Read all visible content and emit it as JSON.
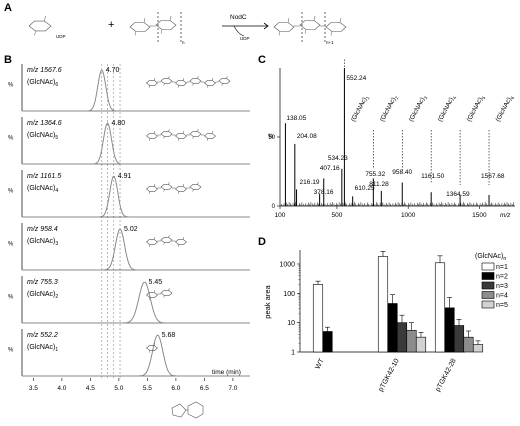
{
  "panels": {
    "A": {
      "letter": "A",
      "enzyme": "NodC",
      "left_label": "UDP",
      "product_label": "UDP",
      "subscript_n": "n",
      "subscript_n1": "n+1"
    },
    "B": {
      "letter": "B",
      "x_axis_label": "time (min)",
      "y_unit": "%"
    },
    "C": {
      "letter": "C",
      "y_unit": "%",
      "x_unit": "m/z"
    },
    "D": {
      "letter": "D",
      "y_axis_label": "peak area",
      "legend_title": "(GlcNAc)"
    }
  },
  "chart_data": [
    {
      "type": "line",
      "panel": "B",
      "x_ticks": [
        3.5,
        4.0,
        4.5,
        5.0,
        5.5,
        6.0,
        6.5,
        7.0
      ],
      "x_tick_labels": [
        "3.5",
        "4.0",
        "4.5",
        "5.0",
        "5.5",
        "6.0",
        "6.5",
        "7.0"
      ],
      "xlim": [
        3.3,
        7.3
      ],
      "xlabel": "time (min)",
      "ylabel": "%",
      "reference_lines": [
        4.7,
        4.8,
        4.91,
        5.02
      ],
      "series": [
        {
          "mz": "m/z 1567.6",
          "name": "(GlcNAc)",
          "sub": "6",
          "peak_time": 4.7,
          "peak_label": "4.70",
          "width": 0.07
        },
        {
          "mz": "m/z 1364.6",
          "name": "(GlcNAc)",
          "sub": "5",
          "peak_time": 4.8,
          "peak_label": "4.80",
          "width": 0.07
        },
        {
          "mz": "m/z 1161.5",
          "name": "(GlcNAc)",
          "sub": "4",
          "peak_time": 4.91,
          "peak_label": "4.91",
          "width": 0.07
        },
        {
          "mz": "m/z 958.4",
          "name": "(GlcNAc)",
          "sub": "3",
          "peak_time": 5.02,
          "peak_label": "5.02",
          "width": 0.08
        },
        {
          "mz": "m/z 755.3",
          "name": "(GlcNAc)",
          "sub": "2",
          "peak_time": 5.45,
          "peak_label": "5.45",
          "width": 0.1
        },
        {
          "mz": "m/z 552.2",
          "name": "(GlcNAc)",
          "sub": "1",
          "peak_time": 5.68,
          "peak_label": "5.68",
          "width": 0.09
        }
      ]
    },
    {
      "type": "bar",
      "panel": "C",
      "xlim": [
        100,
        1750
      ],
      "ylim": [
        0,
        100
      ],
      "x_ticks": [
        100,
        500,
        1000,
        1500
      ],
      "y_ticks": [
        0,
        50
      ],
      "xlabel": "m/z",
      "ylabel": "%",
      "peaks": [
        {
          "mz": 138.05,
          "intensity": 60,
          "label": "138.05"
        },
        {
          "mz": 204.08,
          "intensity": 45,
          "label": "204.08"
        },
        {
          "mz": 216.19,
          "intensity": 12,
          "label": "216.19"
        },
        {
          "mz": 378.16,
          "intensity": 9,
          "label": "378.16"
        },
        {
          "mz": 407.16,
          "intensity": 20,
          "label": "407.16"
        },
        {
          "mz": 534.23,
          "intensity": 27,
          "label": "534.23"
        },
        {
          "mz": 552.24,
          "intensity": 100,
          "label": "552.24"
        },
        {
          "mz": 610.25,
          "intensity": 7,
          "label": "610.25"
        },
        {
          "mz": 755.32,
          "intensity": 20,
          "label": "755.32"
        },
        {
          "mz": 811.28,
          "intensity": 11,
          "label": "811.28"
        },
        {
          "mz": 958.4,
          "intensity": 17,
          "label": "958.40"
        },
        {
          "mz": 1161.5,
          "intensity": 10,
          "label": "1161.50"
        },
        {
          "mz": 1364.59,
          "intensity": 8,
          "label": "1364.59"
        },
        {
          "mz": 1567.68,
          "intensity": 8,
          "label": "1567.68"
        }
      ],
      "annotations": [
        {
          "text": "(GlcNAc)",
          "sub": "1",
          "mz": 552.24
        },
        {
          "text": "(GlcNAc)",
          "sub": "2",
          "mz": 755.32
        },
        {
          "text": "(GlcNAc)",
          "sub": "3",
          "mz": 958.4
        },
        {
          "text": "(GlcNAc)",
          "sub": "4",
          "mz": 1161.5
        },
        {
          "text": "(GlcNAc)",
          "sub": "5",
          "mz": 1364.59
        },
        {
          "text": "(GlcNAc)",
          "sub": "6",
          "mz": 1567.68
        }
      ]
    },
    {
      "type": "bar",
      "panel": "D",
      "scale": "log",
      "ylim": [
        1,
        3000
      ],
      "y_ticks": [
        1,
        10,
        100,
        1000
      ],
      "y_tick_labels": [
        "1",
        "10",
        "100",
        "1000"
      ],
      "ylabel": "peak area",
      "categories": [
        "WT",
        "pTGK42-10",
        "pTGK42-28"
      ],
      "legend_title": "(GlcNAc)",
      "series": [
        {
          "name": "n=1",
          "color": "#ffffff",
          "values": [
            200,
            1800,
            1100
          ],
          "errors": [
            60,
            900,
            800
          ]
        },
        {
          "name": "n=2",
          "color": "#000000",
          "values": [
            5,
            45,
            32
          ],
          "errors": [
            2,
            45,
            40
          ]
        },
        {
          "name": "n=3",
          "color": "#3a3a3a",
          "values": [
            null,
            10,
            8
          ],
          "errors": [
            null,
            8,
            5
          ]
        },
        {
          "name": "n=4",
          "color": "#8c8c8c",
          "values": [
            null,
            5.5,
            3.2
          ],
          "errors": [
            null,
            4.5,
            2
          ]
        },
        {
          "name": "n=5",
          "color": "#d2d2d2",
          "values": [
            null,
            3.2,
            1.8
          ],
          "errors": [
            null,
            1.5,
            0.6
          ]
        }
      ]
    }
  ]
}
